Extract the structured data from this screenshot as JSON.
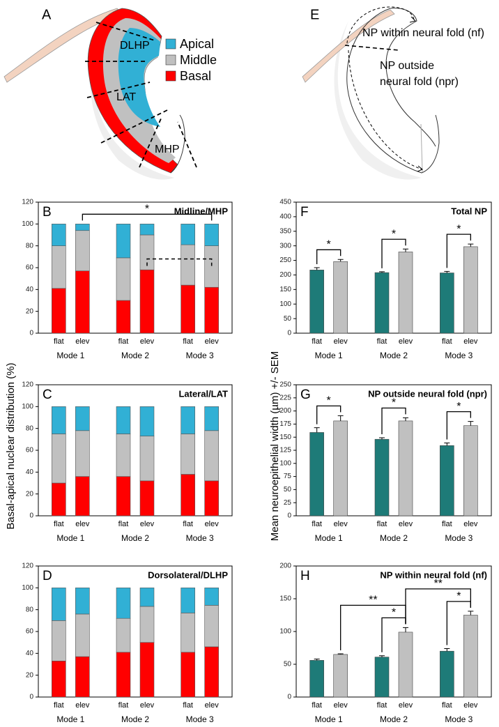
{
  "panels": [
    {
      "letter": "A",
      "labels": [
        "DLHP",
        "LAT",
        "MHP"
      ]
    },
    {
      "letter": "E",
      "labels": [
        "NP within neural fold (nf)",
        "NP outside",
        "neural fold (npr)"
      ]
    }
  ],
  "chart_data": [
    {
      "type": "stacked-bar",
      "panel": "B",
      "title": "Midline/MHP",
      "ylabel": "Basal-apical nuclear distribution (%)",
      "categories": [
        "flat",
        "elev",
        "flat",
        "elev",
        "flat",
        "elev"
      ],
      "groups": [
        "Mode 1",
        "Mode 2",
        "Mode 3"
      ],
      "series": [
        {
          "name": "Basal",
          "color": "#ff0000",
          "values": [
            41,
            57,
            30,
            58,
            44,
            42
          ]
        },
        {
          "name": "Middle",
          "color": "#c0c0c0",
          "values": [
            39,
            37,
            39,
            32,
            37,
            38
          ]
        },
        {
          "name": "Apical",
          "color": "#31b0d5",
          "values": [
            20,
            6,
            31,
            10,
            19,
            20
          ]
        }
      ],
      "ylim": [
        0,
        120
      ],
      "yticks": [
        0,
        20,
        40,
        60,
        80,
        100,
        120
      ],
      "annotations": [
        {
          "between": [
            1,
            5
          ],
          "text": "*"
        },
        {
          "between": [
            3,
            5
          ],
          "line": "dashed",
          "y": 68
        }
      ]
    },
    {
      "type": "stacked-bar",
      "panel": "C",
      "title": "Lateral/LAT",
      "categories": [
        "flat",
        "elev",
        "flat",
        "elev",
        "flat",
        "elev"
      ],
      "groups": [
        "Mode 1",
        "Mode 2",
        "Mode 3"
      ],
      "series": [
        {
          "name": "Basal",
          "color": "#ff0000",
          "values": [
            30,
            36,
            36,
            32,
            38,
            32
          ]
        },
        {
          "name": "Middle",
          "color": "#c0c0c0",
          "values": [
            45,
            42,
            39,
            41,
            37,
            46
          ]
        },
        {
          "name": "Apical",
          "color": "#31b0d5",
          "values": [
            25,
            22,
            25,
            27,
            25,
            22
          ]
        }
      ],
      "ylim": [
        0,
        120
      ],
      "yticks": [
        0,
        20,
        40,
        60,
        80,
        100,
        120
      ]
    },
    {
      "type": "stacked-bar",
      "panel": "D",
      "title": "Dorsolateral/DLHP",
      "categories": [
        "flat",
        "elev",
        "flat",
        "elev",
        "flat",
        "elev"
      ],
      "groups": [
        "Mode 1",
        "Mode 2",
        "Mode 3"
      ],
      "series": [
        {
          "name": "Basal",
          "color": "#ff0000",
          "values": [
            33,
            37,
            41,
            50,
            41,
            46
          ]
        },
        {
          "name": "Middle",
          "color": "#c0c0c0",
          "values": [
            37,
            39,
            31,
            33,
            36,
            38
          ]
        },
        {
          "name": "Apical",
          "color": "#31b0d5",
          "values": [
            30,
            24,
            28,
            17,
            23,
            16
          ]
        }
      ],
      "ylim": [
        0,
        120
      ],
      "yticks": [
        0,
        20,
        40,
        60,
        80,
        100,
        120
      ]
    },
    {
      "type": "bar",
      "panel": "F",
      "title": "Total NP",
      "ylabel": "Mean neuroepithelial width (µm) +/- SEM",
      "categories": [
        "flat",
        "elev",
        "flat",
        "elev",
        "flat",
        "elev"
      ],
      "groups": [
        "Mode 1",
        "Mode 2",
        "Mode 3"
      ],
      "values": [
        217,
        246,
        208,
        279,
        207,
        297
      ],
      "errors": [
        8,
        7,
        3,
        10,
        5,
        9
      ],
      "colors": [
        "#1e7b78",
        "#c0c0c0",
        "#1e7b78",
        "#c0c0c0",
        "#1e7b78",
        "#c0c0c0"
      ],
      "ylim": [
        0,
        450
      ],
      "yticks": [
        0,
        50,
        100,
        150,
        200,
        250,
        300,
        350,
        400,
        450
      ],
      "annotations": [
        {
          "between": [
            0,
            1
          ],
          "text": "*"
        },
        {
          "between": [
            2,
            3
          ],
          "text": "*"
        },
        {
          "between": [
            4,
            5
          ],
          "text": "*"
        }
      ]
    },
    {
      "type": "bar",
      "panel": "G",
      "title": "NP outside neural fold (npr)",
      "categories": [
        "flat",
        "elev",
        "flat",
        "elev",
        "flat",
        "elev"
      ],
      "groups": [
        "Mode 1",
        "Mode 2",
        "Mode 3"
      ],
      "values": [
        159,
        181,
        146,
        181,
        134,
        172
      ],
      "errors": [
        9,
        10,
        3,
        6,
        5,
        8
      ],
      "colors": [
        "#1e7b78",
        "#c0c0c0",
        "#1e7b78",
        "#c0c0c0",
        "#1e7b78",
        "#c0c0c0"
      ],
      "ylim": [
        0,
        250
      ],
      "yticks": [
        0,
        25,
        50,
        75,
        100,
        125,
        150,
        175,
        200,
        225,
        250
      ],
      "annotations": [
        {
          "between": [
            0,
            1
          ],
          "text": "*"
        },
        {
          "between": [
            2,
            3
          ],
          "text": "*"
        },
        {
          "between": [
            4,
            5
          ],
          "text": "*"
        }
      ]
    },
    {
      "type": "bar",
      "panel": "H",
      "title": "NP within neural fold (nf)",
      "categories": [
        "flat",
        "elev",
        "flat",
        "elev",
        "flat",
        "elev"
      ],
      "groups": [
        "Mode 1",
        "Mode 2",
        "Mode 3"
      ],
      "values": [
        56,
        65,
        61,
        99,
        70,
        125
      ],
      "errors": [
        2,
        1,
        2,
        7,
        4,
        6
      ],
      "colors": [
        "#1e7b78",
        "#c0c0c0",
        "#1e7b78",
        "#c0c0c0",
        "#1e7b78",
        "#c0c0c0"
      ],
      "ylim": [
        0,
        200
      ],
      "yticks": [
        0,
        50,
        100,
        150,
        200
      ],
      "annotations": [
        {
          "between": [
            2,
            3
          ],
          "text": "*"
        },
        {
          "between": [
            4,
            5
          ],
          "text": "*"
        },
        {
          "between": [
            1,
            3
          ],
          "text": "**"
        },
        {
          "between": [
            3,
            5
          ],
          "text": "**"
        }
      ]
    }
  ]
}
